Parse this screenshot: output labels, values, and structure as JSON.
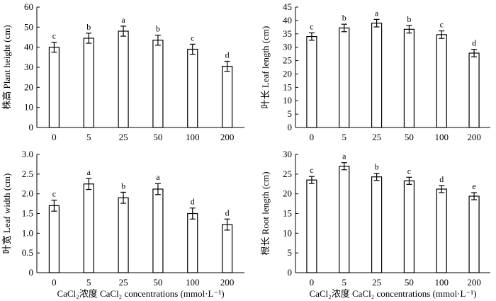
{
  "chart_data": [
    {
      "type": "bar",
      "ylabel": "株高 Plant height (cm)",
      "categories": [
        "0",
        "5",
        "25",
        "50",
        "100",
        "200"
      ],
      "values": [
        40,
        44.5,
        48,
        43.5,
        39,
        30.5
      ],
      "errors": [
        2.5,
        2.5,
        2.5,
        2.5,
        2.5,
        2.5
      ],
      "letters": [
        "c",
        "b",
        "a",
        "b",
        "c",
        "d"
      ],
      "ylim": [
        0,
        60
      ],
      "yticks": [
        0,
        10,
        20,
        30,
        40,
        50,
        60
      ]
    },
    {
      "type": "bar",
      "ylabel": "叶长 Leaf length (cm)",
      "categories": [
        "0",
        "5",
        "25",
        "50",
        "100",
        "200"
      ],
      "values": [
        34,
        37.2,
        39,
        36.7,
        34.7,
        27.8
      ],
      "errors": [
        1.4,
        1.4,
        1.4,
        1.4,
        1.4,
        1.4
      ],
      "letters": [
        "c",
        "b",
        "a",
        "b",
        "c",
        "d"
      ],
      "ylim": [
        0,
        45
      ],
      "yticks": [
        0,
        5,
        10,
        15,
        20,
        25,
        30,
        35,
        40,
        45
      ]
    },
    {
      "type": "bar",
      "ylabel": "叶宽 Leaf width (cm)",
      "categories": [
        "0",
        "5",
        "25",
        "50",
        "100",
        "200"
      ],
      "values": [
        1.7,
        2.25,
        1.9,
        2.12,
        1.5,
        1.22
      ],
      "errors": [
        0.14,
        0.14,
        0.14,
        0.14,
        0.14,
        0.14
      ],
      "letters": [
        "c",
        "a",
        "b",
        "a",
        "d",
        "d"
      ],
      "ylim": [
        0,
        3.0
      ],
      "yticks": [
        "0",
        "0.5",
        "1.0",
        "1.5",
        "2.0",
        "2.5",
        "3.0"
      ],
      "xlabel_cn": "CaCl₂浓度",
      "xlabel_en": "CaCl₂ concentrations (mmol·L⁻¹)"
    },
    {
      "type": "bar",
      "ylabel": "根长 Root length (cm)",
      "categories": [
        "0",
        "5",
        "25",
        "50",
        "100",
        "200"
      ],
      "values": [
        23.5,
        27,
        24.3,
        23.3,
        21.2,
        19.4
      ],
      "errors": [
        0.9,
        0.9,
        0.9,
        0.9,
        0.9,
        0.9
      ],
      "letters": [
        "c",
        "a",
        "b",
        "c",
        "d",
        "e"
      ],
      "ylim": [
        0,
        30
      ],
      "yticks": [
        0,
        5,
        10,
        15,
        20,
        25,
        30
      ],
      "xlabel_cn": "CaCl₂浓度",
      "xlabel_en": "CaCl₂ concentrations (mmol·L⁻¹)"
    }
  ]
}
